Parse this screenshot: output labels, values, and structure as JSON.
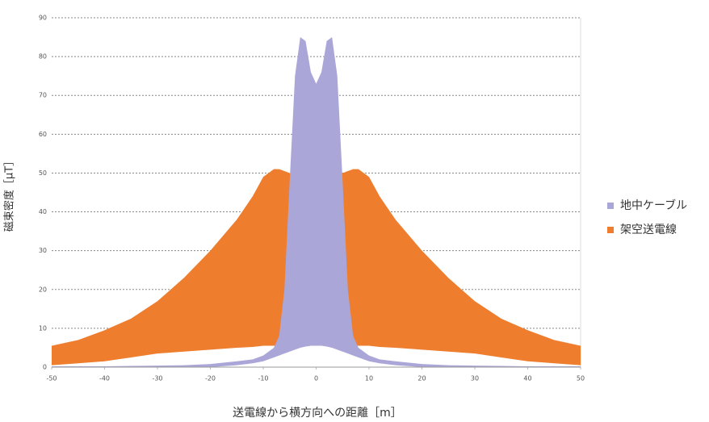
{
  "chart_data": {
    "type": "range-area",
    "x_label": "送電線から横方向への距離［m］",
    "y_label": "磁束密度［μT］",
    "x": [
      -50,
      -45,
      -40,
      -35,
      -30,
      -25,
      -20,
      -15,
      -12,
      -10,
      -8,
      -7,
      -6,
      -5,
      -4,
      -3,
      -2,
      -1,
      0,
      1,
      2,
      3,
      4,
      5,
      6,
      7,
      8,
      10,
      12,
      15,
      20,
      25,
      30,
      35,
      40,
      45,
      50
    ],
    "series": [
      {
        "name": "地中ケーブル",
        "color": "#aba6d8",
        "high": [
          0.2,
          0.2,
          0.2,
          0.3,
          0.4,
          0.5,
          0.8,
          1.5,
          2,
          3,
          5,
          8,
          20,
          48,
          75,
          85,
          84,
          76,
          73,
          76,
          84,
          85,
          75,
          48,
          20,
          8,
          5,
          3,
          2,
          1.5,
          0.8,
          0.5,
          0.4,
          0.3,
          0.2,
          0.2,
          0.2
        ],
        "low": [
          0,
          0,
          0,
          0,
          0,
          0,
          0,
          0.5,
          1,
          1.5,
          2.5,
          3,
          3.5,
          4,
          4.5,
          5,
          5.3,
          5.5,
          5.5,
          5.5,
          5.3,
          5,
          4.5,
          4,
          3.5,
          3,
          2.5,
          1.5,
          1,
          0.5,
          0,
          0,
          0,
          0,
          0,
          0,
          0
        ]
      },
      {
        "name": "架空送電線",
        "color": "#ee7d2e",
        "high": [
          5.5,
          7,
          9.5,
          12.5,
          17,
          23,
          30,
          38,
          44,
          49,
          51,
          51,
          50.5,
          50,
          49.5,
          49,
          48.5,
          48,
          48,
          48,
          48.5,
          49,
          49.5,
          50,
          50.5,
          51,
          51,
          49,
          44,
          38,
          30,
          23,
          17,
          12.5,
          9.5,
          7,
          5.5
        ],
        "low": [
          0.5,
          1,
          1.5,
          2.5,
          3.5,
          4,
          4.5,
          5,
          5.2,
          5.5,
          5.5,
          5.5,
          5.5,
          5.5,
          5.5,
          5.5,
          5.5,
          5.5,
          5.5,
          5.5,
          5.5,
          5.5,
          5.5,
          5.5,
          5.5,
          5.5,
          5.5,
          5.5,
          5.2,
          5,
          4.5,
          4,
          3.5,
          2.5,
          1.5,
          1,
          0.5
        ]
      }
    ],
    "xlim": [
      -50,
      50
    ],
    "xticks": [
      -50,
      -40,
      -30,
      -20,
      -10,
      0,
      10,
      20,
      30,
      40,
      50
    ],
    "ylim": [
      0,
      90
    ],
    "yticks": [
      0,
      10,
      20,
      30,
      40,
      50,
      60,
      70,
      80,
      90
    ],
    "grid": true,
    "legend": "right"
  }
}
